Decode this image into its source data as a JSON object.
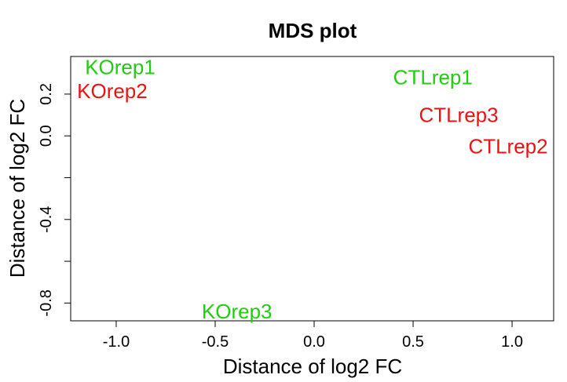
{
  "chart_data": {
    "type": "scatter",
    "title": "MDS plot",
    "xlabel": "Distance of log2 FC",
    "ylabel": "Distance of log2 FC",
    "xlim": [
      -1.23,
      1.21
    ],
    "ylim": [
      -0.885,
      0.38
    ],
    "x_ticks": [
      -1.0,
      -0.5,
      0.0,
      0.5,
      1.0
    ],
    "x_tick_labels": [
      "-1.0",
      "-0.5",
      "0.0",
      "0.5",
      "1.0"
    ],
    "y_ticks": [
      -0.8,
      -0.6,
      -0.4,
      -0.2,
      0.0,
      0.2
    ],
    "y_tick_labels": [
      "-0.8",
      "",
      "-0.4",
      "",
      "0.0",
      "0.2"
    ],
    "grid": false,
    "legend": "none",
    "colors": {
      "green": "#22cc11",
      "red": "#ee1111"
    },
    "points": [
      {
        "label": "KOrep1",
        "x": -0.98,
        "y": 0.33,
        "color": "green"
      },
      {
        "label": "KOrep2",
        "x": -1.02,
        "y": 0.215,
        "color": "red"
      },
      {
        "label": "CTLrep1",
        "x": 0.6,
        "y": 0.28,
        "color": "green"
      },
      {
        "label": "CTLrep3",
        "x": 0.73,
        "y": 0.1,
        "color": "red"
      },
      {
        "label": "CTLrep2",
        "x": 0.98,
        "y": -0.05,
        "color": "red"
      },
      {
        "label": "KOrep3",
        "x": -0.39,
        "y": -0.84,
        "color": "green"
      }
    ]
  }
}
